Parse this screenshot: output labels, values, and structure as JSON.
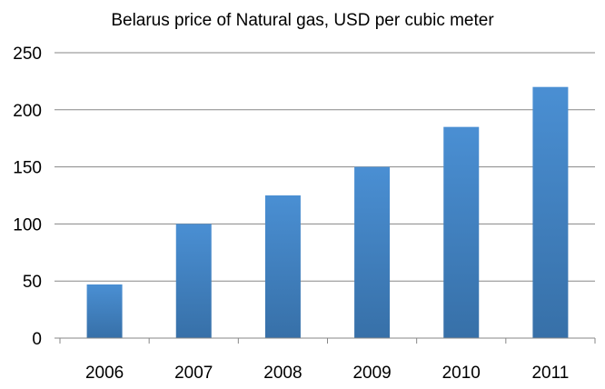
{
  "chart_data": {
    "type": "bar",
    "title": "Belarus price of Natural gas, USD per cubic meter",
    "xlabel": "",
    "ylabel": "",
    "categories": [
      "2006",
      "2007",
      "2008",
      "2009",
      "2010",
      "2011"
    ],
    "values": [
      47,
      100,
      125,
      150,
      185,
      220
    ],
    "ylim": [
      0,
      250
    ],
    "yticks": [
      0,
      50,
      100,
      150,
      200,
      250
    ],
    "grid": true,
    "legend": "none",
    "bar_color_top": "#4a8fd3",
    "bar_color_bottom": "#3770a8"
  }
}
